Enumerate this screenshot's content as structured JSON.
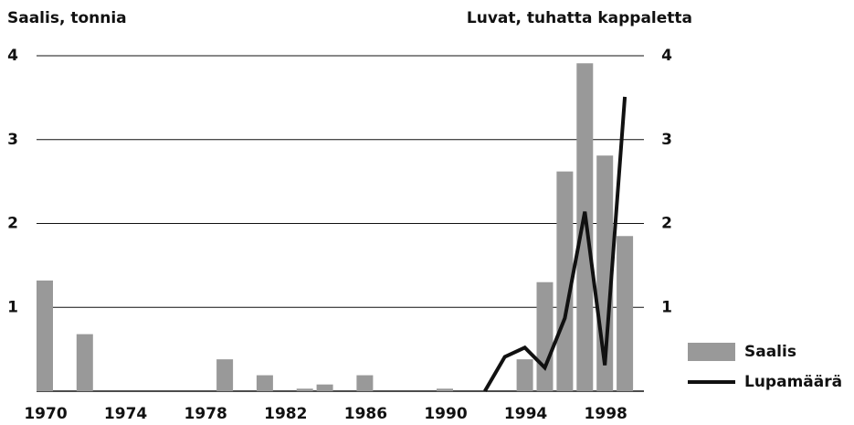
{
  "chart_data": {
    "type": "bar-line",
    "y_label": "Saalis, tonnia",
    "y2_label": "Luvat, tuhatta kappaletta",
    "x": [
      1970,
      1971,
      1972,
      1973,
      1974,
      1975,
      1976,
      1977,
      1978,
      1979,
      1980,
      1981,
      1982,
      1983,
      1984,
      1985,
      1986,
      1987,
      1988,
      1989,
      1990,
      1991,
      1992,
      1993,
      1994,
      1995,
      1996,
      1997,
      1998,
      1999
    ],
    "xlim": [
      1970,
      1999
    ],
    "xticks": [
      1970,
      1974,
      1978,
      1982,
      1986,
      1990,
      1994,
      1998
    ],
    "ylim": [
      0,
      4
    ],
    "yticks": [
      1,
      2,
      3,
      4
    ],
    "y2lim": [
      0,
      4
    ],
    "y2ticks": [
      1,
      2,
      3,
      4
    ],
    "grid": true,
    "legend": "lower right",
    "series": [
      {
        "name": "Saalis",
        "type": "bar",
        "color": "#999999",
        "values": [
          1.32,
          0,
          0.68,
          0,
          0,
          0,
          0,
          0,
          0,
          0.38,
          0,
          0.19,
          0,
          0.03,
          0.08,
          0,
          0.19,
          0,
          0,
          0,
          0.03,
          0,
          0,
          0,
          0.38,
          1.3,
          2.62,
          3.91,
          2.81,
          1.85
        ]
      },
      {
        "name": "Lupamäärä",
        "type": "line",
        "axis": "y2",
        "color": "#111111",
        "values": [
          null,
          null,
          null,
          null,
          null,
          null,
          null,
          null,
          null,
          null,
          null,
          null,
          null,
          null,
          null,
          null,
          null,
          null,
          null,
          null,
          null,
          null,
          0,
          0.41,
          0.52,
          0.28,
          0.87,
          2.14,
          0.31,
          3.51
        ]
      }
    ]
  }
}
